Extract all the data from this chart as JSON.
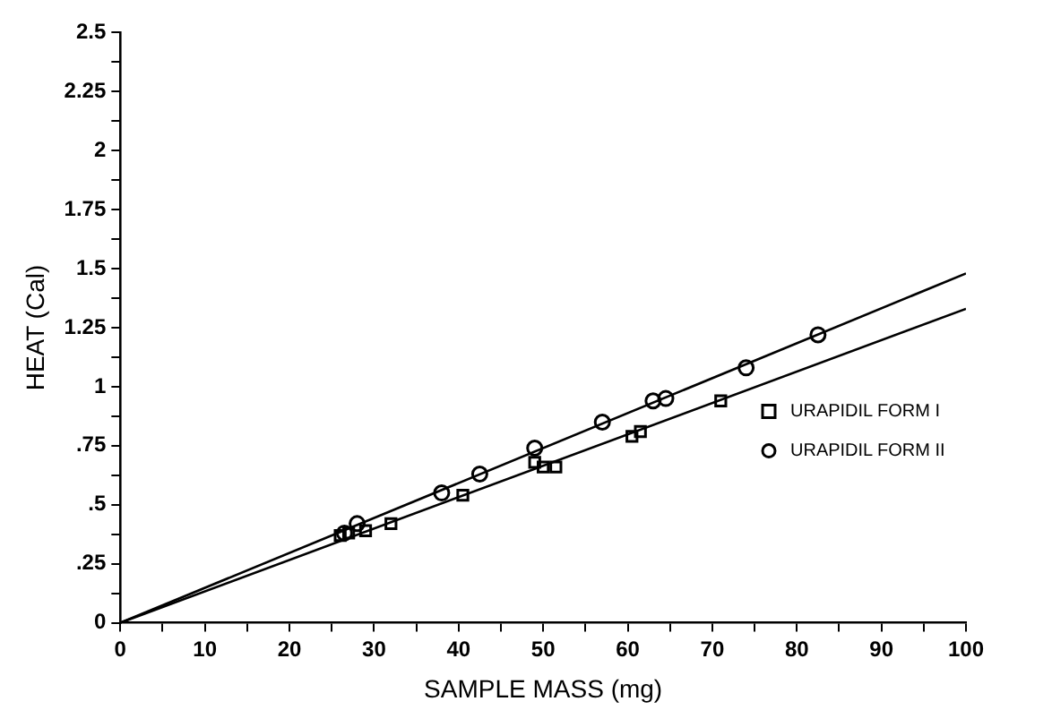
{
  "chart_data": {
    "type": "scatter",
    "xlabel": "SAMPLE MASS (mg)",
    "ylabel": "HEAT (Cal)",
    "xlim": [
      0,
      100
    ],
    "ylim": [
      0,
      2.5
    ],
    "xticks": [
      0,
      {
        "value": 5,
        "label": null
      },
      10,
      {
        "value": 15,
        "label": null
      },
      20,
      {
        "value": 25,
        "label": null
      },
      30,
      {
        "value": 35,
        "label": null
      },
      40,
      {
        "value": 45,
        "label": null
      },
      50,
      {
        "value": 55,
        "label": null
      },
      60,
      {
        "value": 65,
        "label": null
      },
      70,
      {
        "value": 75,
        "label": null
      },
      80,
      {
        "value": 85,
        "label": null
      },
      90,
      {
        "value": 95,
        "label": null
      },
      100
    ],
    "yticks": [
      0,
      {
        "value": 0.125,
        "label": null
      },
      {
        "value": 0.25,
        "label": ".25"
      },
      {
        "value": 0.375,
        "label": null
      },
      {
        "value": 0.5,
        "label": ".5"
      },
      {
        "value": 0.625,
        "label": null
      },
      {
        "value": 0.75,
        "label": ".75"
      },
      {
        "value": 0.875,
        "label": null
      },
      1,
      {
        "value": 1.125,
        "label": null
      },
      1.25,
      {
        "value": 1.375,
        "label": null
      },
      1.5,
      {
        "value": 1.625,
        "label": null
      },
      1.75,
      {
        "value": 1.875,
        "label": null
      },
      2,
      {
        "value": 2.125,
        "label": null
      },
      2.25,
      {
        "value": 2.375,
        "label": null
      },
      2.5
    ],
    "grid": false,
    "legend": "bottom right",
    "series": [
      {
        "name": "URAPIDIL FORM I",
        "marker": "square",
        "color": "#000000",
        "x": [
          26,
          27,
          29,
          32,
          40.5,
          49,
          50,
          51.5,
          60.5,
          61.5,
          71
        ],
        "values": [
          0.37,
          0.38,
          0.39,
          0.42,
          0.54,
          0.68,
          0.66,
          0.66,
          0.79,
          0.81,
          0.94
        ]
      },
      {
        "name": "URAPIDIL FORM II",
        "marker": "circle",
        "color": "#000000",
        "x": [
          26.5,
          28,
          38,
          42.5,
          49,
          57,
          63,
          64.5,
          74,
          82.5
        ],
        "values": [
          0.38,
          0.42,
          0.55,
          0.63,
          0.74,
          0.85,
          0.94,
          0.95,
          1.08,
          1.22
        ]
      },
      {
        "type": "line",
        "marker": "none",
        "color": "#000000",
        "x": [
          0,
          100
        ],
        "values": [
          0,
          1.33
        ]
      },
      {
        "type": "line",
        "marker": "none",
        "color": "#000000",
        "x": [
          0,
          100
        ],
        "values": [
          0,
          1.48
        ]
      }
    ]
  }
}
